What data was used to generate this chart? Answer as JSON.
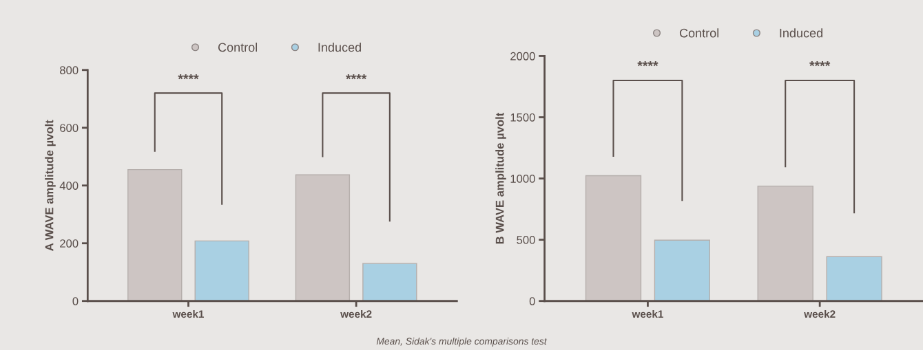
{
  "chart_data": [
    {
      "type": "bar",
      "ylabel": "A WAVE amplitude µvolt",
      "categories": [
        "week1",
        "week2"
      ],
      "series": [
        {
          "name": "Control",
          "color": "#cdc5c3",
          "values": [
            455,
            437
          ]
        },
        {
          "name": "Induced",
          "color": "#a9d0e3",
          "values": [
            208,
            130
          ]
        }
      ],
      "ylim": [
        0,
        800
      ],
      "yticks": [
        0,
        200,
        400,
        600,
        800
      ],
      "grid": false,
      "legend": "top",
      "annotations": [
        "****",
        "****"
      ]
    },
    {
      "type": "bar",
      "ylabel": "B WAVE amplitude µvolt",
      "categories": [
        "week1",
        "week2"
      ],
      "series": [
        {
          "name": "Control",
          "color": "#cdc5c3",
          "values": [
            1023,
            938
          ]
        },
        {
          "name": "Induced",
          "color": "#a9d0e3",
          "values": [
            497,
            362
          ]
        }
      ],
      "ylim": [
        0,
        2000
      ],
      "yticks": [
        0,
        500,
        1000,
        1500,
        2000
      ],
      "grid": false,
      "legend": "top",
      "annotations": [
        "****",
        "****",
        "Mean, Sidak's multiple comparisons test"
      ]
    }
  ]
}
